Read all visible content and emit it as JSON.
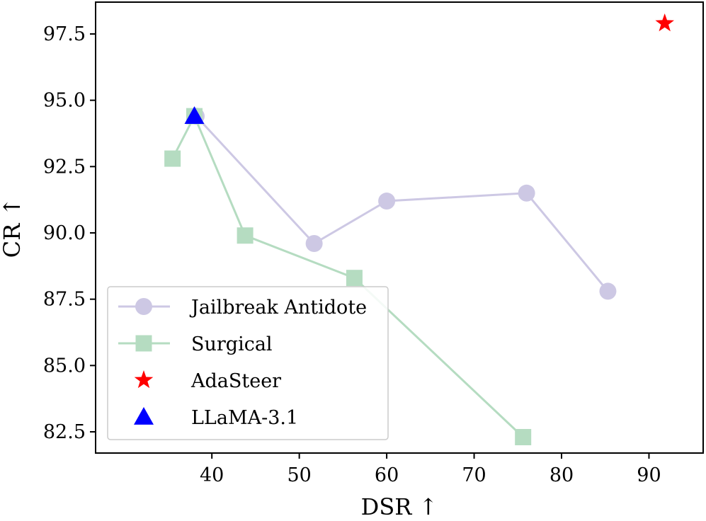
{
  "chart_data": {
    "type": "line",
    "title": "",
    "xlabel": "DSR ↑",
    "ylabel": "CR ↑",
    "xlim": [
      26.7,
      96.2
    ],
    "ylim": [
      81.7,
      98.7
    ],
    "xticks": [
      40,
      50,
      60,
      70,
      80,
      90
    ],
    "yticks": [
      82.5,
      85.0,
      87.5,
      90.0,
      92.5,
      95.0,
      97.5
    ],
    "xtick_labels": [
      "40",
      "50",
      "60",
      "70",
      "80",
      "90"
    ],
    "ytick_labels": [
      "82.5",
      "85.0",
      "87.5",
      "90.0",
      "92.5",
      "95.0",
      "97.5"
    ],
    "grid": false,
    "legend_position": "lower-left",
    "series": [
      {
        "name": "Jailbreak Antidote",
        "marker": "circle",
        "color": "#cdc8e4",
        "points": [
          [
            38.2,
            94.4
          ],
          [
            51.7,
            89.6
          ],
          [
            60.0,
            91.2
          ],
          [
            76.0,
            91.5
          ],
          [
            85.3,
            87.8
          ]
        ]
      },
      {
        "name": "Surgical",
        "marker": "square",
        "color": "#b5dcc1",
        "points": [
          [
            35.5,
            92.8
          ],
          [
            38.0,
            94.4
          ],
          [
            43.8,
            89.9
          ],
          [
            56.3,
            88.3
          ],
          [
            75.6,
            82.3
          ]
        ]
      },
      {
        "name": "AdaSteer",
        "marker": "star",
        "color": "#ff0000",
        "points": [
          [
            91.8,
            97.9
          ]
        ]
      },
      {
        "name": "LLaMA-3.1",
        "marker": "triangle",
        "color": "#0000ff",
        "points": [
          [
            38.0,
            94.4
          ]
        ]
      }
    ]
  }
}
